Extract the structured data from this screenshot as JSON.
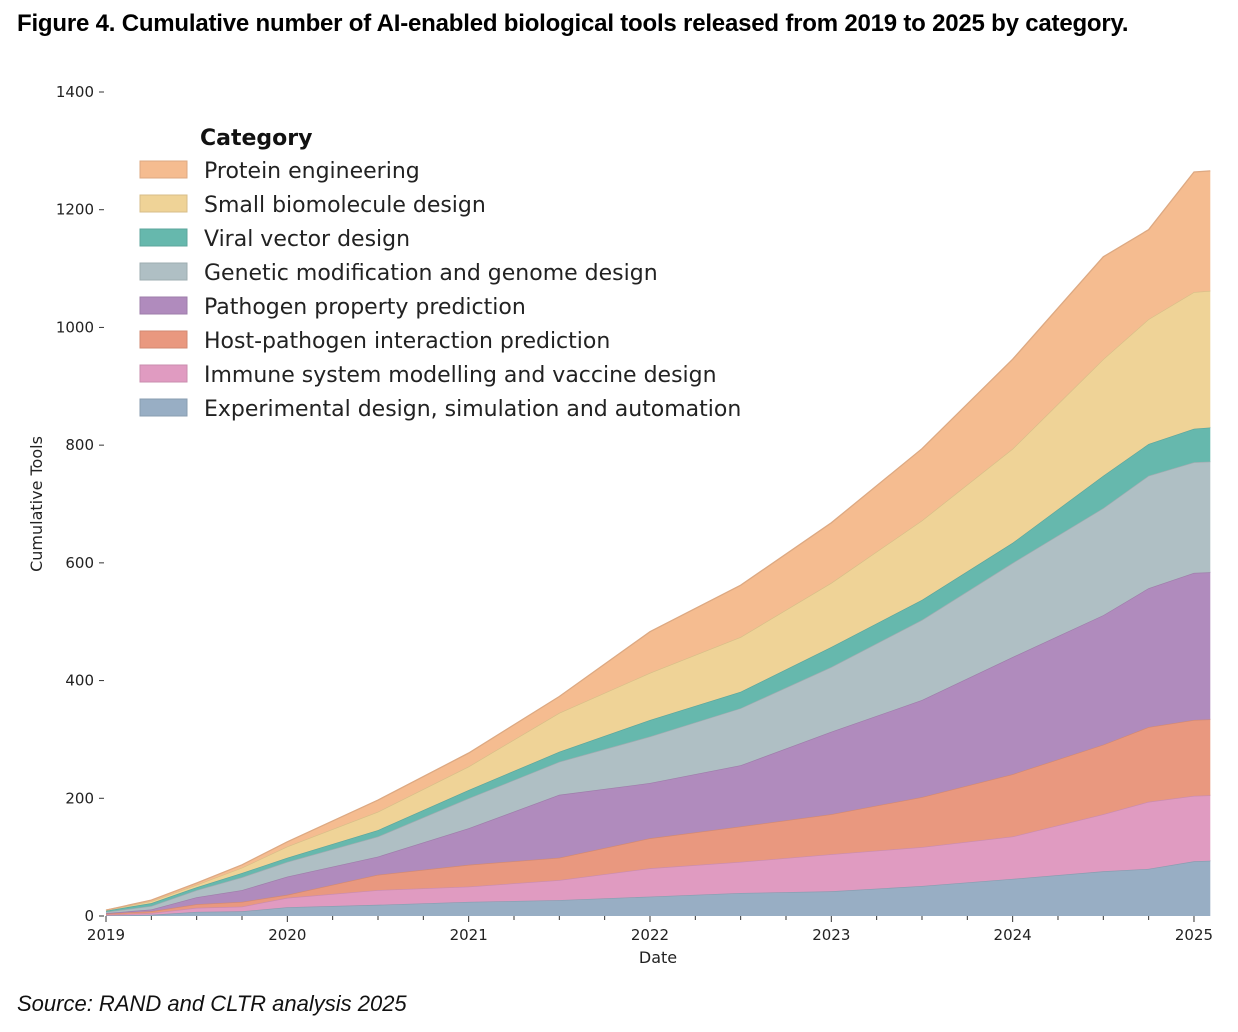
{
  "title": "Figure 4. Cumulative number of AI-enabled biological tools released from 2019 to 2025 by category.",
  "source": "Source: RAND and CLTR analysis 2025",
  "chart_data": {
    "type": "area",
    "stacked": true,
    "xlabel": "Date",
    "ylabel": "Cumulative Tools",
    "xlim": [
      2019,
      2025.09
    ],
    "ylim": [
      0,
      1400
    ],
    "xticks": [
      2019,
      2020,
      2021,
      2022,
      2023,
      2024,
      2025
    ],
    "xtick_labels": [
      "2019",
      "2020",
      "2021",
      "2022",
      "2023",
      "2024",
      "2025"
    ],
    "yticks": [
      0,
      200,
      400,
      600,
      800,
      1000,
      1200,
      1400
    ],
    "ytick_labels": [
      "0",
      "200",
      "400",
      "600",
      "800",
      "1000",
      "1200",
      "1400"
    ],
    "grid": false,
    "legend": {
      "title": "Category",
      "placement": "top-left"
    },
    "x": [
      2019,
      2019.25,
      2019.5,
      2019.75,
      2020,
      2020.5,
      2021,
      2021.5,
      2022,
      2022.5,
      2023,
      2023.5,
      2024,
      2024.5,
      2024.75,
      2025,
      2025.09
    ],
    "series": [
      {
        "name": "Experimental design, simulation and automation",
        "color": "#98aec4",
        "values": [
          1,
          2,
          7,
          8,
          15,
          19,
          24,
          27,
          33,
          39,
          42,
          51,
          63,
          76,
          80,
          93,
          94
        ]
      },
      {
        "name": "Immune system modelling and vaccine design",
        "color": "#e09bc1",
        "values": [
          1,
          3,
          7,
          8,
          16,
          25,
          26,
          34,
          48,
          53,
          63,
          66,
          72,
          97,
          114,
          111,
          111
        ]
      },
      {
        "name": "Host-pathogen interaction prediction",
        "color": "#e9987f",
        "values": [
          2,
          3,
          6,
          8,
          5,
          26,
          37,
          38,
          51,
          60,
          68,
          85,
          106,
          118,
          127,
          129,
          129
        ]
      },
      {
        "name": "Pathogen property prediction",
        "color": "#b08bbd",
        "values": [
          1,
          3,
          12,
          20,
          31,
          31,
          62,
          107,
          94,
          104,
          140,
          165,
          199,
          220,
          236,
          250,
          250
        ]
      },
      {
        "name": "Genetic modification and genome design",
        "color": "#afbfc4",
        "values": [
          2,
          6,
          12,
          22,
          25,
          34,
          51,
          56,
          79,
          97,
          110,
          136,
          160,
          182,
          191,
          188,
          188
        ]
      },
      {
        "name": "Viral vector design",
        "color": "#66b8ad",
        "values": [
          2,
          5,
          5,
          7,
          7,
          11,
          14,
          17,
          28,
          28,
          34,
          34,
          34,
          55,
          54,
          57,
          58
        ]
      },
      {
        "name": "Small biomolecule design",
        "color": "#efd397",
        "values": [
          1,
          3,
          4,
          9,
          19,
          31,
          40,
          66,
          80,
          93,
          109,
          135,
          160,
          198,
          212,
          232,
          232
        ]
      },
      {
        "name": "Protein engineering",
        "color": "#f5bc90",
        "values": [
          0,
          2,
          3,
          5,
          8,
          20,
          23,
          28,
          70,
          88,
          102,
          122,
          152,
          174,
          152,
          204,
          204
        ]
      }
    ]
  }
}
